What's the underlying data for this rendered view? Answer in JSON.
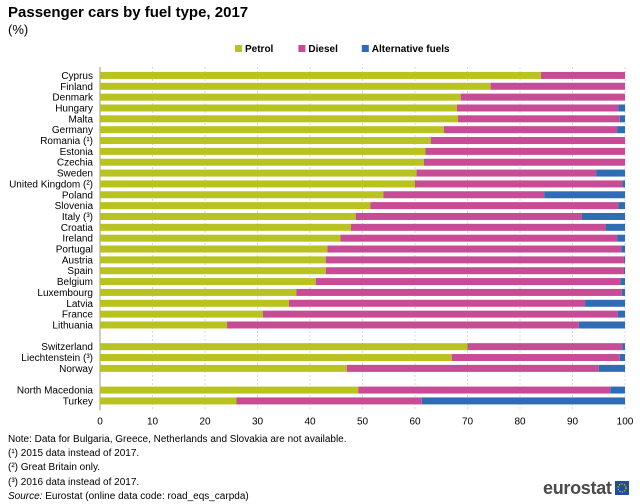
{
  "page": {
    "title": "Passenger cars by fuel type, 2017",
    "subtitle": "(%)",
    "notes": [
      "Note: Data for Bulgaria, Greece, Netherlands and Slovakia are not available.",
      "(¹) 2015 data instead of 2017.",
      "(²) Great Britain only.",
      "(³) 2016 data instead of 2017."
    ],
    "source_label": "Source:",
    "source_text": "Eurostat (online data code: road_eqs_carpda)",
    "logo_text": "eurostat"
  },
  "chart_data": {
    "type": "bar",
    "orientation": "horizontal",
    "stacked": true,
    "title": "Passenger cars by fuel type, 2017",
    "subtitle": "(%)",
    "xlim": [
      0,
      100
    ],
    "xticks": [
      0,
      10,
      20,
      30,
      40,
      50,
      60,
      70,
      80,
      90,
      100
    ],
    "grid": "vertical",
    "legend_position": "top",
    "categories": [
      "Cyprus",
      "Finland",
      "Denmark",
      "Hungary",
      "Malta",
      "Germany",
      "Romania (¹)",
      "Estonia",
      "Czechia",
      "Sweden",
      "United Kingdom (²)",
      "Poland",
      "Slovenia",
      "Italy (³)",
      "Croatia",
      "Ireland",
      "Portugal",
      "Austria",
      "Spain",
      "Belgium",
      "Luxembourg",
      "Latvia",
      "France",
      "Lithuania",
      "",
      "Switzerland",
      "Liechtenstein (³)",
      "Norway",
      "",
      "North Macedonia",
      "Turkey"
    ],
    "series": [
      {
        "name": "Petrol",
        "color": "#b9c31f",
        "values": [
          84,
          74.4,
          68.7,
          68,
          68.2,
          65.5,
          63,
          62,
          61.7,
          60.3,
          60,
          54,
          51.5,
          48.7,
          47.8,
          45.8,
          43.3,
          43,
          43,
          41.1,
          37.4,
          36,
          31,
          24.2,
          null,
          70,
          67,
          47,
          null,
          49.2,
          26
        ]
      },
      {
        "name": "Diesel",
        "color": "#c84b96",
        "values": [
          16,
          25.6,
          31.3,
          30.7,
          30.8,
          33,
          37,
          38,
          38.3,
          34.2,
          39.5,
          30.6,
          47.2,
          43.1,
          48.5,
          52.7,
          56,
          56.8,
          56.8,
          58,
          62,
          56.4,
          67.6,
          67,
          null,
          29.5,
          32,
          48,
          null,
          48,
          35.3
        ]
      },
      {
        "name": "Alternative fuels",
        "color": "#2e6db4",
        "values": [
          0,
          0,
          0,
          1.3,
          1,
          1.5,
          0,
          0,
          0,
          5.5,
          0.5,
          15.4,
          1.3,
          8.2,
          3.7,
          1.5,
          0.7,
          0.2,
          0.2,
          0.9,
          0.6,
          7.6,
          1.4,
          8.8,
          null,
          0.5,
          1,
          5,
          null,
          2.8,
          38.7
        ]
      }
    ]
  }
}
